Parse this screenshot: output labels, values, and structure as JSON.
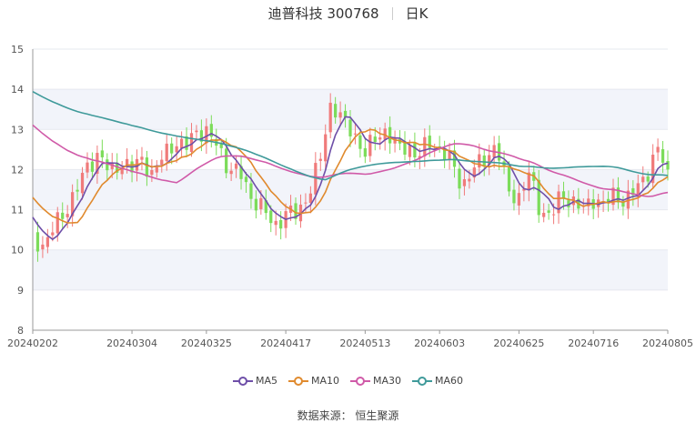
{
  "header": {
    "stock": "迪普科技 300768",
    "period": "日K"
  },
  "source": {
    "label": "数据来源：",
    "provider": "恒生聚源"
  },
  "colors": {
    "up": "#f07b7b",
    "down": "#7cdc5a",
    "ma5": "#6e4fa8",
    "ma10": "#e08a2e",
    "ma30": "#d05aa8",
    "ma60": "#3f9a9a",
    "band": "#f2f4fa"
  },
  "chart_data": {
    "type": "candlestick",
    "ylim": [
      8,
      15
    ],
    "yticks": [
      8,
      9,
      10,
      11,
      12,
      13,
      14,
      15
    ],
    "x_tick_labels": [
      "20240202",
      "20240304",
      "20240325",
      "20240417",
      "20240513",
      "20240603",
      "20240625",
      "20240716",
      "20240805"
    ],
    "legend": [
      "MA5",
      "MA10",
      "MA30",
      "MA60"
    ],
    "legend_position": "bottom",
    "segments": [
      {
        "start": "20240202",
        "end": "20240304",
        "days": 20,
        "path": [
          10.3,
          10.1,
          10.6,
          11.0,
          11.5,
          12.1,
          12.4,
          11.9,
          12.2,
          12.0
        ]
      },
      {
        "start": "20240304",
        "end": "20240325",
        "days": 15,
        "path": [
          12.0,
          12.3,
          11.8,
          12.4,
          12.7,
          12.5,
          13.0,
          12.9
        ]
      },
      {
        "start": "20240325",
        "end": "20240417",
        "days": 16,
        "path": [
          12.9,
          12.6,
          12.0,
          11.9,
          11.3,
          11.0,
          10.6,
          10.9
        ]
      },
      {
        "start": "20240417",
        "end": "20240513",
        "days": 16,
        "path": [
          10.9,
          10.9,
          11.4,
          12.2,
          13.7,
          13.2,
          12.9,
          12.4
        ]
      },
      {
        "start": "20240513",
        "end": "20240603",
        "days": 15,
        "path": [
          12.4,
          12.8,
          13.0,
          12.5,
          12.6,
          12.3,
          12.7,
          12.5
        ]
      },
      {
        "start": "20240603",
        "end": "20240625",
        "days": 16,
        "path": [
          12.5,
          12.2,
          11.6,
          12.0,
          12.3,
          12.6,
          11.5,
          11.3
        ]
      },
      {
        "start": "20240625",
        "end": "20240716",
        "days": 15,
        "path": [
          11.3,
          11.9,
          11.0,
          10.8,
          11.4,
          11.2,
          11.0,
          11.3
        ]
      },
      {
        "start": "20240716",
        "end": "20240805",
        "days": 15,
        "path": [
          11.3,
          11.1,
          11.4,
          11.2,
          11.5,
          11.9,
          12.5,
          12.0
        ]
      }
    ]
  }
}
